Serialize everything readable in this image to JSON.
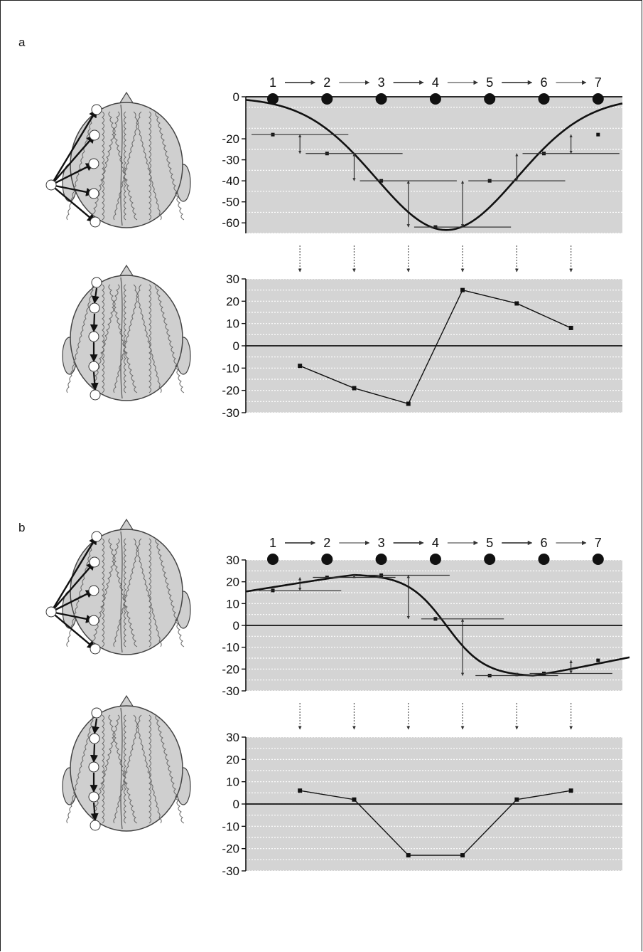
{
  "panels": [
    {
      "label": "a",
      "top_chart": {
        "step_labels": [
          "1",
          "2",
          "3",
          "4",
          "5",
          "6",
          "7"
        ],
        "yticks": [
          0,
          -20,
          -30,
          -40,
          -50,
          -60
        ],
        "ylim": [
          -65,
          0
        ],
        "curve": {
          "amplitude": -63,
          "center": 4.2,
          "width": 1.3
        },
        "points": [
          {
            "x": 1,
            "y": -18
          },
          {
            "x": 2,
            "y": -27
          },
          {
            "x": 3,
            "y": -40
          },
          {
            "x": 4,
            "y": -62
          },
          {
            "x": 5,
            "y": -40
          },
          {
            "x": 6,
            "y": -27
          },
          {
            "x": 7,
            "y": -18
          }
        ]
      },
      "bottom_chart": {
        "yticks": [
          30,
          20,
          10,
          0,
          -10,
          -20,
          -30
        ],
        "ylim": [
          -30,
          30
        ],
        "points": [
          {
            "x": 1.5,
            "y": -9
          },
          {
            "x": 2.5,
            "y": -19
          },
          {
            "x": 3.5,
            "y": -26
          },
          {
            "x": 4.5,
            "y": 25
          },
          {
            "x": 5.5,
            "y": 19
          },
          {
            "x": 6.5,
            "y": 8
          }
        ]
      }
    },
    {
      "label": "b",
      "top_chart": {
        "step_labels": [
          "1",
          "2",
          "3",
          "4",
          "5",
          "6",
          "7"
        ],
        "yticks": [
          30,
          20,
          10,
          0,
          -10,
          -20,
          -30
        ],
        "ylim": [
          -30,
          30
        ],
        "curve": {
          "type": "sine",
          "amplitude": 24,
          "center": 4.2
        },
        "points": [
          {
            "x": 1,
            "y": 16
          },
          {
            "x": 2,
            "y": 22
          },
          {
            "x": 3,
            "y": 23
          },
          {
            "x": 4,
            "y": 3
          },
          {
            "x": 5,
            "y": -23
          },
          {
            "x": 6,
            "y": -22
          },
          {
            "x": 7,
            "y": -16
          }
        ]
      },
      "bottom_chart": {
        "yticks": [
          30,
          20,
          10,
          0,
          -10,
          -20,
          -30
        ],
        "ylim": [
          -30,
          30
        ],
        "points": [
          {
            "x": 1.5,
            "y": 6
          },
          {
            "x": 2.5,
            "y": 2
          },
          {
            "x": 3.5,
            "y": -23
          },
          {
            "x": 4.5,
            "y": -23
          },
          {
            "x": 5.5,
            "y": 2
          },
          {
            "x": 6.5,
            "y": 6
          }
        ]
      }
    }
  ],
  "colors": {
    "plot_bg": "#d4d4d4",
    "line": "#111111",
    "grid": "#ffffff",
    "head_fill": "#cfcfcf"
  }
}
